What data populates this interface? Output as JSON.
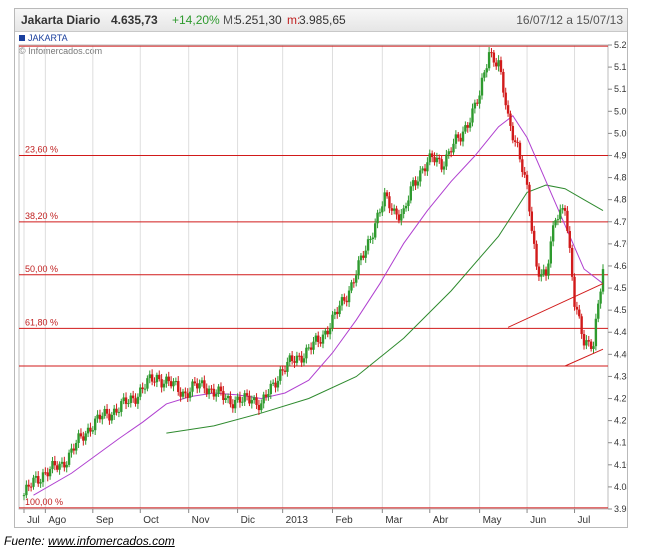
{
  "header": {
    "title": "Jakarta Diario",
    "last": "4.635,73",
    "change": "+14,20%",
    "max_label": "M:",
    "max_value": "5.251,30",
    "min_label": "m:",
    "min_value": "3.985,65",
    "range": "16/07/12 a 15/07/13"
  },
  "legend": {
    "label": "JAKARTA"
  },
  "copyright": "© Infomercados.com",
  "source": {
    "prefix": "Fuente: ",
    "link": "www.infomercados.com"
  },
  "colors": {
    "up": "#2e9a2e",
    "down": "#d11a1a",
    "ma_short": "#b040d0",
    "ma_long": "#2e8a2e",
    "fib": "#d11a1a",
    "grid": "#dedede"
  },
  "chart_data": {
    "type": "candlestick",
    "title": "Jakarta Diario",
    "y_ticks": [
      "5.254",
      "5.193",
      "5.133",
      "5.072",
      "5.011",
      "4.951",
      "4.890",
      "4.830",
      "4.769",
      "4.709",
      "4.648",
      "4.588",
      "4.527",
      "4.467",
      "4.406",
      "4.346",
      "4.285",
      "4.225",
      "4.164",
      "4.103",
      "4.043",
      "3.982"
    ],
    "ylim": [
      3982,
      5254
    ],
    "x_ticks": [
      {
        "label": "Jul",
        "x": 0
      },
      {
        "label": "Ago",
        "x": 0.045
      },
      {
        "label": "Sep",
        "x": 0.145
      },
      {
        "label": "Oct",
        "x": 0.245
      },
      {
        "label": "Nov",
        "x": 0.347
      },
      {
        "label": "Dic",
        "x": 0.45
      },
      {
        "label": "2013",
        "x": 0.545
      },
      {
        "label": "Feb",
        "x": 0.65
      },
      {
        "label": "Mar",
        "x": 0.755
      },
      {
        "label": "Abr",
        "x": 0.855
      },
      {
        "label": "May",
        "x": 0.96
      },
      {
        "label": "Jun",
        "x": 1.06
      },
      {
        "label": "Jul",
        "x": 1.16
      }
    ],
    "fibonacci": [
      {
        "label": "23,60 %",
        "value": 4951
      },
      {
        "label": "38,20 %",
        "value": 4769
      },
      {
        "label": "50,00 %",
        "value": 4624
      },
      {
        "label": "61,80 %",
        "value": 4477
      },
      {
        "label": "100,00 %",
        "value": 3985
      },
      {
        "label": "",
        "value": 5251
      },
      {
        "label": "",
        "value": 4374
      }
    ],
    "price": [
      [
        0,
        4020
      ],
      [
        0.02,
        4055
      ],
      [
        0.04,
        4080
      ],
      [
        0.06,
        4090
      ],
      [
        0.08,
        4105
      ],
      [
        0.1,
        4140
      ],
      [
        0.12,
        4175
      ],
      [
        0.14,
        4210
      ],
      [
        0.16,
        4230
      ],
      [
        0.18,
        4245
      ],
      [
        0.2,
        4260
      ],
      [
        0.22,
        4275
      ],
      [
        0.24,
        4300
      ],
      [
        0.26,
        4325
      ],
      [
        0.28,
        4345
      ],
      [
        0.3,
        4330
      ],
      [
        0.32,
        4315
      ],
      [
        0.34,
        4300
      ],
      [
        0.36,
        4315
      ],
      [
        0.38,
        4325
      ],
      [
        0.4,
        4300
      ],
      [
        0.42,
        4290
      ],
      [
        0.44,
        4280
      ],
      [
        0.46,
        4275
      ],
      [
        0.48,
        4290
      ],
      [
        0.5,
        4265
      ],
      [
        0.52,
        4310
      ],
      [
        0.54,
        4360
      ],
      [
        0.56,
        4380
      ],
      [
        0.58,
        4400
      ],
      [
        0.6,
        4420
      ],
      [
        0.62,
        4440
      ],
      [
        0.64,
        4480
      ],
      [
        0.66,
        4520
      ],
      [
        0.68,
        4570
      ],
      [
        0.7,
        4630
      ],
      [
        0.72,
        4690
      ],
      [
        0.74,
        4770
      ],
      [
        0.76,
        4830
      ],
      [
        0.78,
        4800
      ],
      [
        0.8,
        4790
      ],
      [
        0.82,
        4870
      ],
      [
        0.84,
        4920
      ],
      [
        0.86,
        4940
      ],
      [
        0.88,
        4930
      ],
      [
        0.9,
        4970
      ],
      [
        0.92,
        5000
      ],
      [
        0.94,
        5060
      ],
      [
        0.96,
        5110
      ],
      [
        0.98,
        5240
      ],
      [
        1.0,
        5200
      ],
      [
        1.02,
        5050
      ],
      [
        1.04,
        4980
      ],
      [
        1.06,
        4850
      ],
      [
        1.08,
        4650
      ],
      [
        1.1,
        4620
      ],
      [
        1.12,
        4780
      ],
      [
        1.14,
        4820
      ],
      [
        1.16,
        4540
      ],
      [
        1.18,
        4450
      ],
      [
        1.2,
        4430
      ],
      [
        1.22,
        4636
      ]
    ],
    "ma_short": [
      [
        0.02,
        4020
      ],
      [
        0.1,
        4080
      ],
      [
        0.2,
        4175
      ],
      [
        0.25,
        4220
      ],
      [
        0.3,
        4270
      ],
      [
        0.35,
        4290
      ],
      [
        0.4,
        4300
      ],
      [
        0.45,
        4295
      ],
      [
        0.5,
        4285
      ],
      [
        0.55,
        4300
      ],
      [
        0.6,
        4335
      ],
      [
        0.65,
        4410
      ],
      [
        0.7,
        4500
      ],
      [
        0.75,
        4600
      ],
      [
        0.8,
        4710
      ],
      [
        0.85,
        4800
      ],
      [
        0.9,
        4880
      ],
      [
        0.95,
        4950
      ],
      [
        1.0,
        5030
      ],
      [
        1.03,
        5060
      ],
      [
        1.06,
        5000
      ],
      [
        1.1,
        4880
      ],
      [
        1.14,
        4760
      ],
      [
        1.18,
        4640
      ],
      [
        1.22,
        4600
      ]
    ],
    "ma_long": [
      [
        0.3,
        4190
      ],
      [
        0.4,
        4210
      ],
      [
        0.5,
        4245
      ],
      [
        0.6,
        4285
      ],
      [
        0.7,
        4345
      ],
      [
        0.8,
        4450
      ],
      [
        0.9,
        4580
      ],
      [
        1.0,
        4730
      ],
      [
        1.06,
        4850
      ],
      [
        1.1,
        4870
      ],
      [
        1.14,
        4860
      ],
      [
        1.18,
        4830
      ],
      [
        1.22,
        4800
      ]
    ]
  }
}
